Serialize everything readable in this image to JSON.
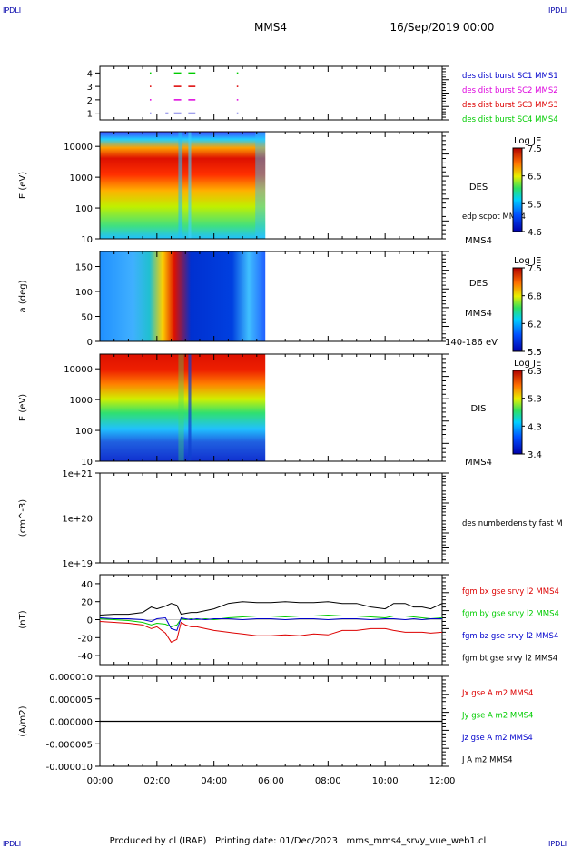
{
  "corner_label": "IPDLI",
  "header": {
    "title": "MMS4",
    "date": "16/Sep/2019 00:00"
  },
  "footer": "Produced by cl (IRAP)   Printing date: 01/Dec/2023   mms_mms4_srvy_vue_web1.cl",
  "colors": {
    "red": "#dd0000",
    "green": "#00cc00",
    "blue": "#0000cc",
    "magenta": "#dd00dd",
    "black": "#000000"
  },
  "chart_data": [
    {
      "id": "burst",
      "type": "scatter",
      "ylim": [
        0.5,
        4.5
      ],
      "ytick_labels": [
        "1",
        "2",
        "3",
        "4"
      ],
      "legend": [
        "des dist burst SC1 MMS1",
        "des dist burst SC2 MMS2",
        "des dist burst SC3 MMS3",
        "des dist burst SC4 MMS4"
      ],
      "legend_colors": [
        "#0000cc",
        "#dd00dd",
        "#dd0000",
        "#00cc00"
      ],
      "series": [
        {
          "level": 1,
          "color": "#0000cc",
          "segments": [
            [
              1.75,
              1.8
            ],
            [
              2.3,
              2.4
            ],
            [
              2.6,
              2.85
            ],
            [
              3.1,
              3.35
            ],
            [
              4.8,
              4.85
            ]
          ]
        },
        {
          "level": 2,
          "color": "#dd00dd",
          "segments": [
            [
              1.75,
              1.8
            ],
            [
              2.6,
              2.85
            ],
            [
              3.1,
              3.35
            ],
            [
              4.8,
              4.85
            ]
          ]
        },
        {
          "level": 3,
          "color": "#dd0000",
          "segments": [
            [
              1.75,
              1.8
            ],
            [
              2.6,
              2.85
            ],
            [
              3.1,
              3.35
            ],
            [
              4.8,
              4.85
            ]
          ]
        },
        {
          "level": 4,
          "color": "#00cc00",
          "segments": [
            [
              1.75,
              1.8
            ],
            [
              2.6,
              2.85
            ],
            [
              3.1,
              3.35
            ],
            [
              4.8,
              4.85
            ]
          ]
        }
      ]
    },
    {
      "id": "des_energy",
      "type": "heatmap",
      "ylabel": "E (eV)",
      "ytick_labels": [
        "10",
        "100",
        "1000",
        "10000"
      ],
      "ylim_log": [
        10,
        30000
      ],
      "data_range_hours": [
        0,
        5.8
      ],
      "side_labels": [
        "DES",
        "edp scpot MMS4",
        "MMS4"
      ],
      "colorbar": {
        "title": "Log JE",
        "ticks": [
          "7.5",
          "6.5",
          "5.5",
          "4.6"
        ]
      }
    },
    {
      "id": "des_pitch",
      "type": "heatmap",
      "ylabel": "a (deg)",
      "ytick_labels": [
        "0",
        "50",
        "100",
        "150"
      ],
      "ylim": [
        0,
        180
      ],
      "data_range_hours": [
        0,
        5.8
      ],
      "side_labels": [
        "DES",
        "MMS4",
        "140-186 eV"
      ],
      "colorbar": {
        "title": "Log JE",
        "ticks": [
          "7.5",
          "6.8",
          "6.2",
          "5.5"
        ]
      }
    },
    {
      "id": "dis_energy",
      "type": "heatmap",
      "ylabel": "E (eV)",
      "ytick_labels": [
        "10",
        "100",
        "1000",
        "10000"
      ],
      "ylim_log": [
        10,
        30000
      ],
      "data_range_hours": [
        0,
        5.8
      ],
      "side_labels": [
        "DIS",
        "MMS4"
      ],
      "colorbar": {
        "title": "Log JE",
        "ticks": [
          "6.3",
          "5.3",
          "4.3",
          "3.4"
        ]
      }
    },
    {
      "id": "density",
      "type": "line",
      "ylabel": "(cm^-3)",
      "ytick_labels": [
        "1e+19",
        "1e+20",
        "1e+21"
      ],
      "ylim_log": [
        1e+19,
        1e+21
      ],
      "legend": [
        "des numberdensity fast M"
      ]
    },
    {
      "id": "fgm",
      "type": "line",
      "ylabel": "(nT)",
      "ylim": [
        -50,
        50
      ],
      "ytick_labels": [
        "-40",
        "-20",
        "0",
        "20",
        "40"
      ],
      "legend": [
        "fgm bx gse srvy l2 MMS4",
        "fgm by gse srvy l2 MMS4",
        "fgm bz gse srvy l2 MMS4",
        "fgm bt gse srvy l2 MMS4"
      ],
      "legend_colors": [
        "#dd0000",
        "#00cc00",
        "#0000cc",
        "#000000"
      ],
      "series": [
        {
          "name": "fgm bt gse srvy l2 MMS4",
          "color": "#000000",
          "x": [
            0,
            0.5,
            1,
            1.5,
            1.8,
            2.0,
            2.3,
            2.5,
            2.7,
            2.85,
            3.0,
            3.2,
            3.4,
            3.7,
            4.0,
            4.5,
            5.0,
            5.5,
            6.0,
            6.5,
            7.0,
            7.5,
            8.0,
            8.5,
            9.0,
            9.5,
            10.0,
            10.3,
            10.7,
            11.0,
            11.3,
            11.6,
            12.0
          ],
          "y": [
            5,
            6,
            6,
            8,
            14,
            12,
            15,
            18,
            16,
            6,
            7,
            8,
            8,
            10,
            12,
            18,
            20,
            19,
            19,
            20,
            19,
            19,
            20,
            18,
            18,
            14,
            12,
            18,
            18,
            14,
            14,
            12,
            18
          ]
        },
        {
          "name": "fgm bx gse srvy l2 MMS4",
          "color": "#dd0000",
          "x": [
            0,
            0.5,
            1,
            1.5,
            1.8,
            2.0,
            2.3,
            2.5,
            2.7,
            2.85,
            3.0,
            3.2,
            3.4,
            3.7,
            4.0,
            4.5,
            5.0,
            5.5,
            6.0,
            6.5,
            7.0,
            7.5,
            8.0,
            8.5,
            9.0,
            9.5,
            10.0,
            10.3,
            10.7,
            11.0,
            11.3,
            11.6,
            12.0
          ],
          "y": [
            -2,
            -3,
            -4,
            -6,
            -10,
            -8,
            -15,
            -25,
            -22,
            -3,
            -6,
            -8,
            -8,
            -10,
            -12,
            -14,
            -16,
            -18,
            -18,
            -17,
            -18,
            -16,
            -17,
            -12,
            -12,
            -10,
            -10,
            -12,
            -14,
            -14,
            -14,
            -15,
            -14
          ]
        },
        {
          "name": "fgm by gse srvy l2 MMS4",
          "color": "#00cc00",
          "x": [
            0,
            0.5,
            1,
            1.5,
            1.8,
            2.0,
            2.3,
            2.5,
            2.7,
            2.85,
            3.0,
            3.2,
            3.4,
            3.7,
            4.0,
            4.5,
            5.0,
            5.5,
            6.0,
            6.5,
            7.0,
            7.5,
            8.0,
            8.5,
            9.0,
            9.5,
            10.0,
            10.3,
            10.7,
            11.0,
            11.3,
            11.6,
            12.0
          ],
          "y": [
            1,
            0,
            -1,
            -3,
            -6,
            -4,
            -5,
            -8,
            -6,
            1,
            0,
            1,
            0,
            1,
            0,
            2,
            3,
            4,
            4,
            3,
            4,
            4,
            5,
            4,
            4,
            3,
            2,
            4,
            4,
            3,
            2,
            1,
            2
          ]
        },
        {
          "name": "fgm bz gse srvy l2 MMS4",
          "color": "#0000cc",
          "x": [
            0,
            0.5,
            1,
            1.5,
            1.8,
            2.0,
            2.3,
            2.5,
            2.7,
            2.85,
            3.0,
            3.2,
            3.4,
            3.7,
            4.0,
            4.5,
            5.0,
            5.5,
            6.0,
            6.5,
            7.0,
            7.5,
            8.0,
            8.5,
            9.0,
            9.5,
            10.0,
            10.3,
            10.7,
            11.0,
            11.3,
            11.6,
            12.0
          ],
          "y": [
            2,
            1,
            1,
            0,
            -2,
            1,
            2,
            -10,
            -12,
            2,
            1,
            0,
            1,
            0,
            1,
            1,
            0,
            1,
            1,
            0,
            1,
            1,
            0,
            1,
            1,
            0,
            1,
            1,
            0,
            1,
            0,
            1,
            1
          ]
        }
      ]
    },
    {
      "id": "current",
      "type": "line",
      "ylabel": "(A/m2)",
      "ylim": [
        -1e-05,
        1e-05
      ],
      "ytick_labels": [
        "-0.000010",
        "-0.000005",
        "0.000000",
        "0.000005",
        "0.000010"
      ],
      "legend": [
        "Jx gse A m2 MMS4",
        "Jy gse A m2 MMS4",
        "Jz gse A m2 MMS4",
        "J A m2 MMS4"
      ],
      "legend_colors": [
        "#dd0000",
        "#00cc00",
        "#0000cc",
        "#000000"
      ],
      "series": [
        {
          "name": "J A m2 MMS4",
          "color": "#000000",
          "x": [
            0,
            12
          ],
          "y": [
            0,
            0
          ]
        }
      ]
    }
  ],
  "x_axis": {
    "tick_labels": [
      "00:00",
      "02:00",
      "04:00",
      "06:00",
      "08:00",
      "10:00",
      "12:00"
    ],
    "range_hours": [
      0,
      12
    ]
  }
}
